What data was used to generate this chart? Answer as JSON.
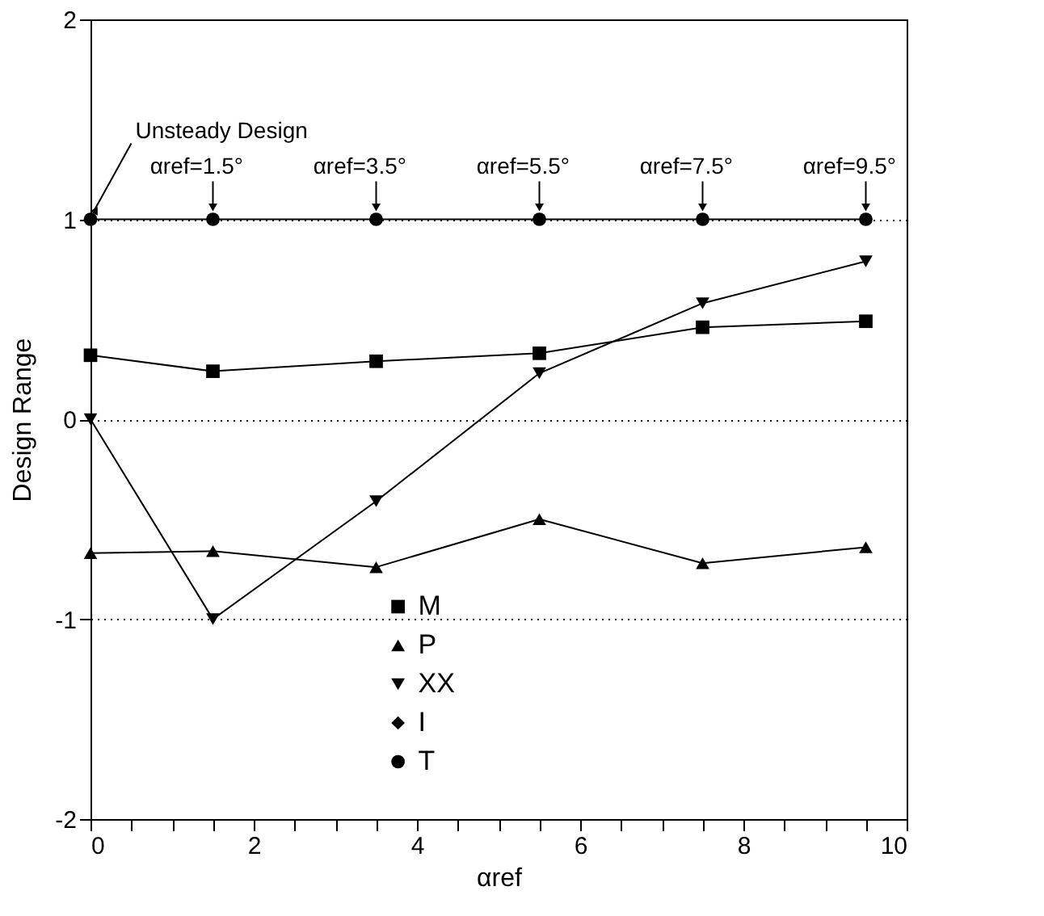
{
  "chart_data": {
    "type": "line",
    "xlabel": "αref",
    "ylabel": "Design Range",
    "xlim": [
      0,
      10
    ],
    "ylim": [
      -2,
      2
    ],
    "xticks": [
      0,
      {
        "value": 0.5,
        "label": null
      },
      {
        "value": 1,
        "label": null
      },
      {
        "value": 1.5,
        "label": null
      },
      2,
      {
        "value": 2.5,
        "label": null
      },
      {
        "value": 3,
        "label": null
      },
      {
        "value": 3.5,
        "label": null
      },
      4,
      {
        "value": 4.5,
        "label": null
      },
      {
        "value": 5,
        "label": null
      },
      {
        "value": 5.5,
        "label": null
      },
      6,
      {
        "value": 6.5,
        "label": null
      },
      {
        "value": 7,
        "label": null
      },
      {
        "value": 7.5,
        "label": null
      },
      8,
      {
        "value": 8.5,
        "label": null
      },
      {
        "value": 9,
        "label": null
      },
      {
        "value": 9.5,
        "label": null
      },
      10
    ],
    "yticks": [
      -2,
      -1,
      0,
      1,
      2
    ],
    "grid": "y",
    "legend": "bottom",
    "x": [
      0,
      1.5,
      3.5,
      5.5,
      7.5,
      9.5
    ],
    "series": [
      {
        "name": "M",
        "color": "#000000",
        "marker": "square",
        "values": [
          0.32,
          0.24,
          0.29,
          0.33,
          0.46,
          0.49
        ]
      },
      {
        "name": "P",
        "color": "#000000",
        "marker": "triangle",
        "values": [
          -0.67,
          -0.66,
          -0.74,
          -0.5,
          -0.72,
          -0.64
        ]
      },
      {
        "name": "XX",
        "color": "#000000",
        "marker": "triangle-down",
        "values": [
          0,
          -1.0,
          -0.41,
          0.23,
          0.58,
          0.79
        ]
      },
      {
        "name": "I",
        "color": "#000000",
        "marker": "diamond",
        "values": [
          null,
          null,
          null,
          null,
          null,
          null
        ]
      },
      {
        "name": "T",
        "color": "#000000",
        "marker": "circle",
        "values": [
          1,
          1,
          1,
          1,
          1,
          1
        ]
      }
    ],
    "annotations": [
      {
        "text": "Unsteady Design",
        "x": 0,
        "y": 1
      },
      {
        "text": "αref=1.5°",
        "x": 1.5,
        "y": 1
      },
      {
        "text": "αref=3.5°",
        "x": 3.5,
        "y": 1
      },
      {
        "text": "αref=5.5°",
        "x": 5.5,
        "y": 1
      },
      {
        "text": "αref=7.5°",
        "x": 7.5,
        "y": 1
      },
      {
        "text": "αref=9.5°",
        "x": 9.5,
        "y": 1
      }
    ]
  }
}
